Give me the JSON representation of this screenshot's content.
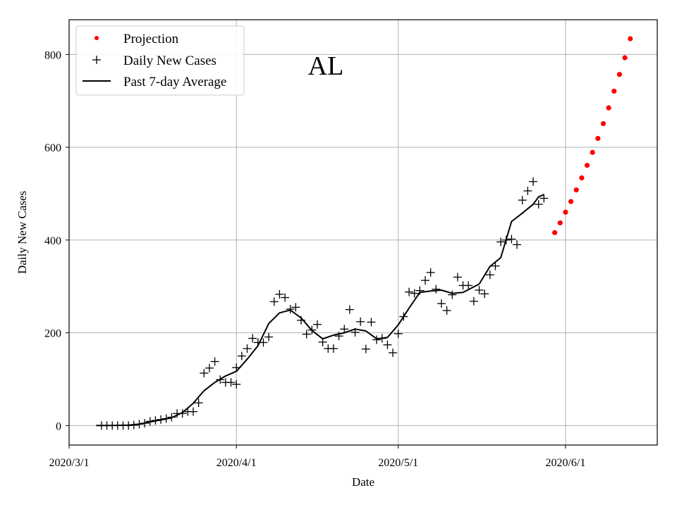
{
  "chart_data": {
    "type": "line",
    "title": "",
    "annotation": "AL",
    "xlabel": "Date",
    "ylabel": "Daily New Cases",
    "x_axis": "date",
    "xlim": [
      "2020-03-01",
      "2020-06-18"
    ],
    "ylim": [
      -42,
      875
    ],
    "x_ticks": [
      {
        "date": "2020-03-01",
        "label": "2020/3/1"
      },
      {
        "date": "2020-04-01",
        "label": "2020/4/1"
      },
      {
        "date": "2020-05-01",
        "label": "2020/5/1"
      },
      {
        "date": "2020-06-01",
        "label": "2020/6/1"
      }
    ],
    "y_ticks": [
      0,
      200,
      400,
      600,
      800
    ],
    "grid": true,
    "legend_position": "top-left",
    "series": [
      {
        "name": "Projection",
        "style": "dots",
        "color": "#ff0000",
        "points": [
          [
            "2020-05-30",
            416
          ],
          [
            "2020-05-31",
            437
          ],
          [
            "2020-06-01",
            460
          ],
          [
            "2020-06-02",
            483
          ],
          [
            "2020-06-03",
            508
          ],
          [
            "2020-06-04",
            534
          ],
          [
            "2020-06-05",
            561
          ],
          [
            "2020-06-06",
            589
          ],
          [
            "2020-06-07",
            619
          ],
          [
            "2020-06-08",
            651
          ],
          [
            "2020-06-09",
            685
          ],
          [
            "2020-06-10",
            721
          ],
          [
            "2020-06-11",
            757
          ],
          [
            "2020-06-12",
            793
          ],
          [
            "2020-06-13",
            834
          ]
        ]
      },
      {
        "name": "Daily New Cases",
        "style": "plus",
        "color": "#000000",
        "points": [
          [
            "2020-03-07",
            0
          ],
          [
            "2020-03-08",
            0
          ],
          [
            "2020-03-09",
            0
          ],
          [
            "2020-03-10",
            0
          ],
          [
            "2020-03-11",
            0
          ],
          [
            "2020-03-12",
            0
          ],
          [
            "2020-03-13",
            1
          ],
          [
            "2020-03-14",
            3
          ],
          [
            "2020-03-15",
            5
          ],
          [
            "2020-03-16",
            9
          ],
          [
            "2020-03-17",
            11
          ],
          [
            "2020-03-18",
            13
          ],
          [
            "2020-03-19",
            15
          ],
          [
            "2020-03-20",
            18
          ],
          [
            "2020-03-21",
            26
          ],
          [
            "2020-03-22",
            26
          ],
          [
            "2020-03-23",
            30
          ],
          [
            "2020-03-24",
            30
          ],
          [
            "2020-03-25",
            49
          ],
          [
            "2020-03-26",
            113
          ],
          [
            "2020-03-27",
            124
          ],
          [
            "2020-03-28",
            138
          ],
          [
            "2020-03-29",
            99
          ],
          [
            "2020-03-30",
            93
          ],
          [
            "2020-03-31",
            93
          ],
          [
            "2020-04-01",
            89
          ],
          [
            "2020-04-01",
            125
          ],
          [
            "2020-04-02",
            150
          ],
          [
            "2020-04-03",
            166
          ],
          [
            "2020-04-04",
            188
          ],
          [
            "2020-04-05",
            179
          ],
          [
            "2020-04-06",
            179
          ],
          [
            "2020-04-07",
            191
          ],
          [
            "2020-04-08",
            267
          ],
          [
            "2020-04-09",
            283
          ],
          [
            "2020-04-10",
            276
          ],
          [
            "2020-04-11",
            251
          ],
          [
            "2020-04-12",
            255
          ],
          [
            "2020-04-13",
            227
          ],
          [
            "2020-04-14",
            197
          ],
          [
            "2020-04-15",
            206
          ],
          [
            "2020-04-16",
            218
          ],
          [
            "2020-04-17",
            180
          ],
          [
            "2020-04-18",
            166
          ],
          [
            "2020-04-19",
            166
          ],
          [
            "2020-04-20",
            193
          ],
          [
            "2020-04-21",
            208
          ],
          [
            "2020-04-22",
            250
          ],
          [
            "2020-04-23",
            201
          ],
          [
            "2020-04-24",
            224
          ],
          [
            "2020-04-25",
            165
          ],
          [
            "2020-04-26",
            223
          ],
          [
            "2020-04-27",
            185
          ],
          [
            "2020-04-28",
            188
          ],
          [
            "2020-04-29",
            174
          ],
          [
            "2020-04-30",
            157
          ],
          [
            "2020-05-01",
            198
          ],
          [
            "2020-05-02",
            235
          ],
          [
            "2020-05-03",
            288
          ],
          [
            "2020-05-04",
            285
          ],
          [
            "2020-05-05",
            291
          ],
          [
            "2020-05-06",
            313
          ],
          [
            "2020-05-07",
            330
          ],
          [
            "2020-05-08",
            294
          ],
          [
            "2020-05-09",
            263
          ],
          [
            "2020-05-10",
            248
          ],
          [
            "2020-05-11",
            282
          ],
          [
            "2020-05-12",
            320
          ],
          [
            "2020-05-13",
            302
          ],
          [
            "2020-05-14",
            302
          ],
          [
            "2020-05-15",
            268
          ],
          [
            "2020-05-16",
            292
          ],
          [
            "2020-05-17",
            284
          ],
          [
            "2020-05-18",
            325
          ],
          [
            "2020-05-19",
            344
          ],
          [
            "2020-05-20",
            396
          ],
          [
            "2020-05-21",
            400
          ],
          [
            "2020-05-22",
            402
          ],
          [
            "2020-05-23",
            390
          ],
          [
            "2020-05-24",
            486
          ],
          [
            "2020-05-25",
            506
          ],
          [
            "2020-05-26",
            526
          ],
          [
            "2020-05-27",
            477
          ],
          [
            "2020-05-28",
            490
          ]
        ]
      },
      {
        "name": "Past 7-day Average",
        "style": "line",
        "color": "#000000",
        "points": [
          [
            "2020-03-06",
            0
          ],
          [
            "2020-03-09",
            0
          ],
          [
            "2020-03-12",
            1
          ],
          [
            "2020-03-14",
            3
          ],
          [
            "2020-03-16",
            8
          ],
          [
            "2020-03-18",
            12
          ],
          [
            "2020-03-20",
            17
          ],
          [
            "2020-03-22",
            28
          ],
          [
            "2020-03-24",
            48
          ],
          [
            "2020-03-26",
            75
          ],
          [
            "2020-03-28",
            93
          ],
          [
            "2020-03-30",
            107
          ],
          [
            "2020-04-01",
            117
          ],
          [
            "2020-04-03",
            143
          ],
          [
            "2020-04-05",
            172
          ],
          [
            "2020-04-07",
            220
          ],
          [
            "2020-04-09",
            243
          ],
          [
            "2020-04-11",
            249
          ],
          [
            "2020-04-13",
            232
          ],
          [
            "2020-04-15",
            205
          ],
          [
            "2020-04-17",
            187
          ],
          [
            "2020-04-19",
            195
          ],
          [
            "2020-04-21",
            200
          ],
          [
            "2020-04-23",
            208
          ],
          [
            "2020-04-25",
            204
          ],
          [
            "2020-04-27",
            187
          ],
          [
            "2020-04-29",
            190
          ],
          [
            "2020-05-01",
            217
          ],
          [
            "2020-05-03",
            253
          ],
          [
            "2020-05-05",
            287
          ],
          [
            "2020-05-07",
            290
          ],
          [
            "2020-05-09",
            292
          ],
          [
            "2020-05-11",
            285
          ],
          [
            "2020-05-13",
            287
          ],
          [
            "2020-05-16",
            305
          ],
          [
            "2020-05-18",
            343
          ],
          [
            "2020-05-20",
            362
          ],
          [
            "2020-05-22",
            440
          ],
          [
            "2020-05-24",
            458
          ],
          [
            "2020-05-26",
            477
          ],
          [
            "2020-05-27",
            493
          ],
          [
            "2020-05-28",
            498
          ]
        ]
      }
    ]
  }
}
